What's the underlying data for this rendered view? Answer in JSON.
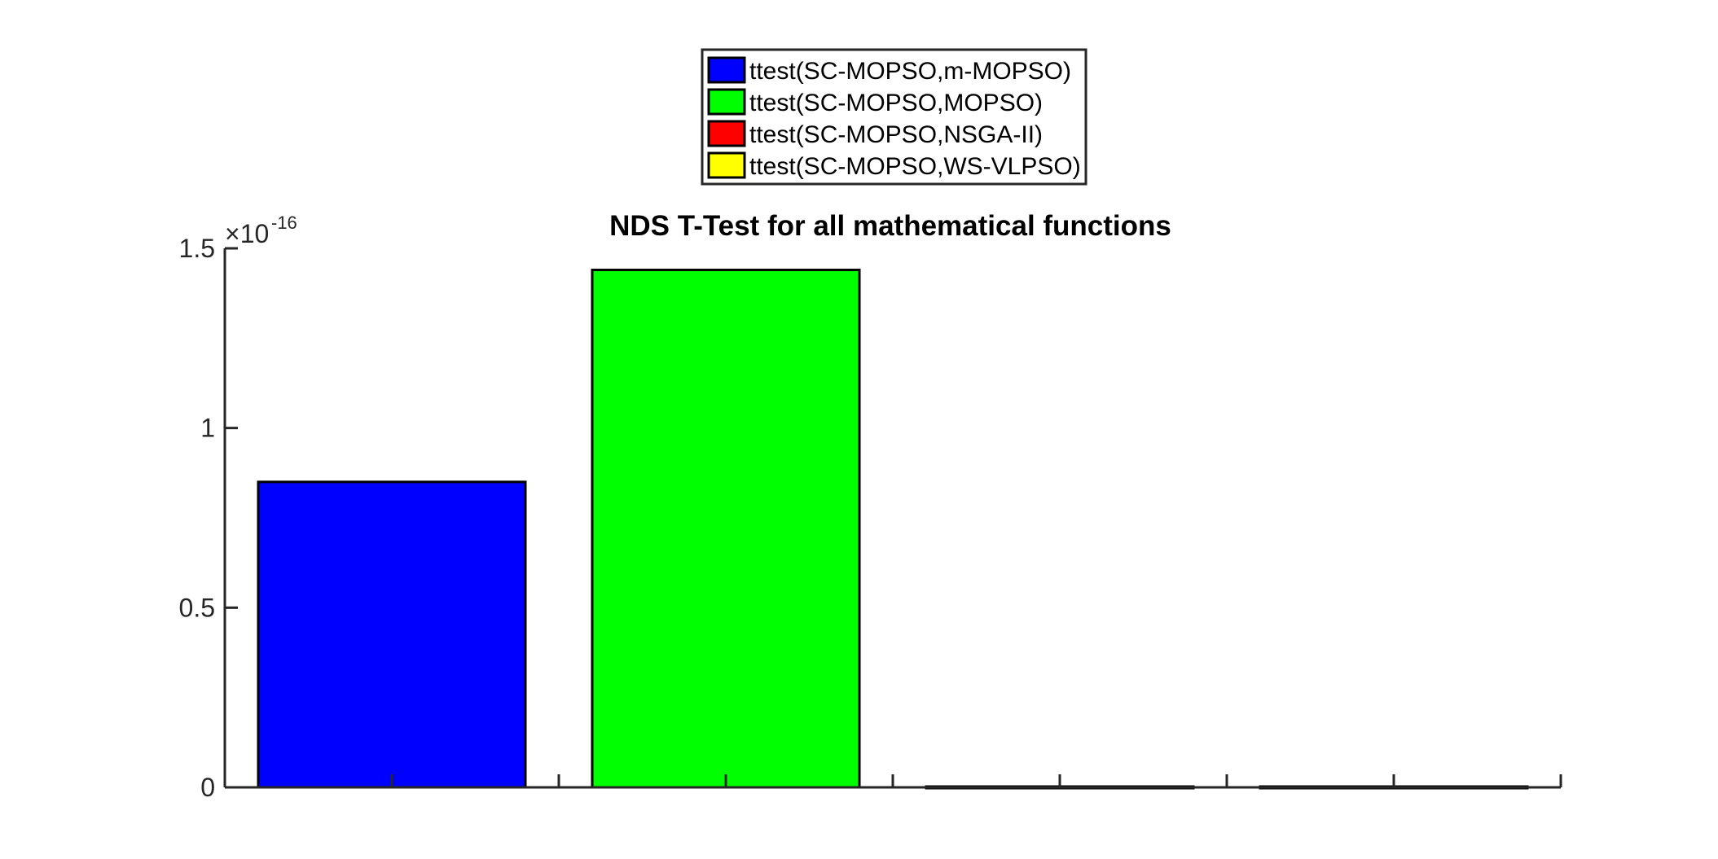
{
  "chart_data": {
    "type": "bar",
    "title": "NDS T-Test for all mathematical functions",
    "xlabel": "",
    "ylabel": "",
    "y_exponent_label": "×10",
    "y_exponent_power": "-16",
    "ylim": [
      0,
      1.5
    ],
    "y_ticks": [
      0,
      0.5,
      1,
      1.5
    ],
    "y_tick_labels": [
      "0",
      "0.5",
      "1",
      "1.5"
    ],
    "x_tick_count": 7,
    "grid": false,
    "legend_position": "top-center",
    "series": [
      {
        "name": "ttest(SC-MOPSO,m-MOPSO)",
        "color": "#0000ff",
        "value": 0.85
      },
      {
        "name": "ttest(SC-MOPSO,MOPSO)",
        "color": "#00ff00",
        "value": 1.44
      },
      {
        "name": "ttest(SC-MOPSO,NSGA-II)",
        "color": "#ff0000",
        "value": 0
      },
      {
        "name": "ttest(SC-MOPSO,WS-VLPSO)",
        "color": "#ffff00",
        "value": 0
      }
    ]
  }
}
